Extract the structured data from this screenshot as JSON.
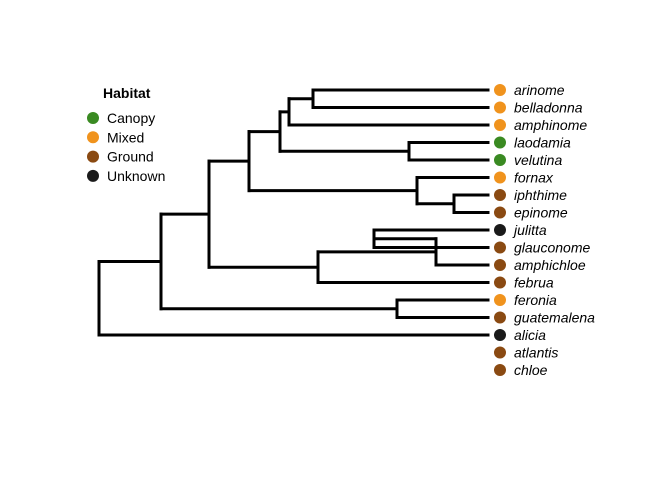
{
  "legend": {
    "title": "Habitat",
    "items": [
      {
        "key": "Canopy",
        "label": "Canopy",
        "color": "#3a8a22"
      },
      {
        "key": "Mixed",
        "label": "Mixed",
        "color": "#f0931d"
      },
      {
        "key": "Ground",
        "label": "Ground",
        "color": "#8a4a12"
      },
      {
        "key": "Unknown",
        "label": "Unknown",
        "color": "#1a1a1a"
      }
    ]
  },
  "tips": [
    {
      "name": "arinome",
      "habitat": "Mixed"
    },
    {
      "name": "belladonna",
      "habitat": "Mixed"
    },
    {
      "name": "amphinome",
      "habitat": "Mixed"
    },
    {
      "name": "laodamia",
      "habitat": "Canopy"
    },
    {
      "name": "velutina",
      "habitat": "Canopy"
    },
    {
      "name": "fornax",
      "habitat": "Mixed"
    },
    {
      "name": "iphthime",
      "habitat": "Ground"
    },
    {
      "name": "epinome",
      "habitat": "Ground"
    },
    {
      "name": "julitta",
      "habitat": "Unknown"
    },
    {
      "name": "glauconome",
      "habitat": "Ground"
    },
    {
      "name": "amphichloe",
      "habitat": "Ground"
    },
    {
      "name": "februa",
      "habitat": "Ground"
    },
    {
      "name": "feronia",
      "habitat": "Mixed"
    },
    {
      "name": "guatemalena",
      "habitat": "Ground"
    },
    {
      "name": "alicia",
      "habitat": "Unknown"
    },
    {
      "name": "atlantis",
      "habitat": "Ground"
    },
    {
      "name": "chloe",
      "habitat": "Ground"
    }
  ],
  "tree": "(((((((arinome,belladonna),amphinome),(laodamia,velutina)),(fornax,(iphthime,epinome))),(((julitta,glauconome),amphichloe),februa)),(feronia,guatemalena)),alicia),atlantis),chloe)"
}
